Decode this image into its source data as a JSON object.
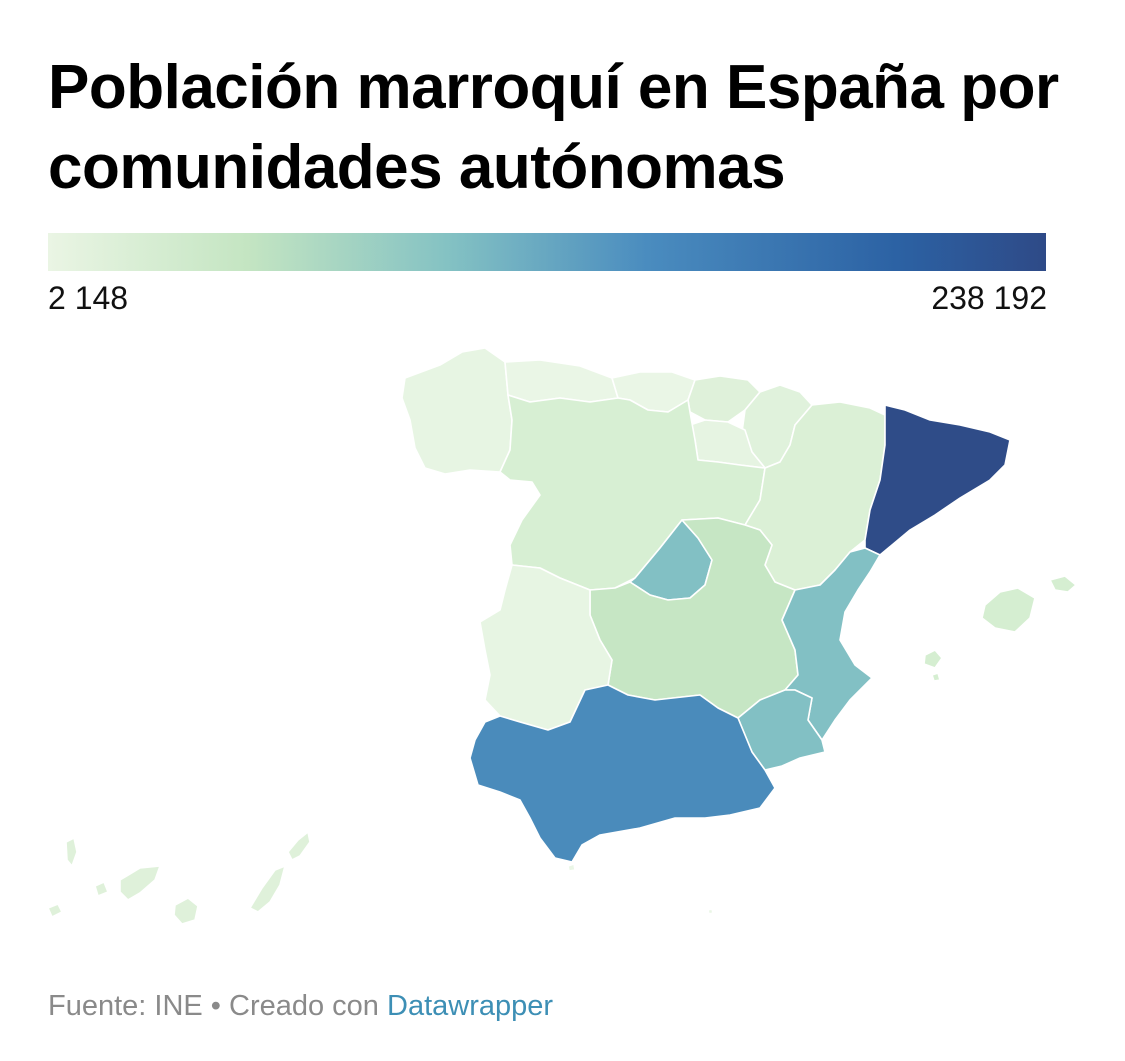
{
  "title": "Población marroquí en España por comunidades autónomas",
  "legend": {
    "min_label": "2 148",
    "max_label": "238 192",
    "min_value": 2148,
    "max_value": 238192,
    "gradient_colors": [
      "#eaf5e4",
      "#c4e5c2",
      "#84c2c3",
      "#4a8cbf",
      "#2c62a4",
      "#2e4a87"
    ]
  },
  "regions": [
    {
      "id": "cataluna",
      "color": "#2f4c88"
    },
    {
      "id": "andalucia",
      "color": "#4a8bbb"
    },
    {
      "id": "madrid",
      "color": "#82c0c4"
    },
    {
      "id": "valencia",
      "color": "#82c0c4"
    },
    {
      "id": "murcia",
      "color": "#82c0c4"
    },
    {
      "id": "castilla-la-mancha",
      "color": "#c6e6c4"
    },
    {
      "id": "castilla-y-leon",
      "color": "#d7efd3"
    },
    {
      "id": "aragon",
      "color": "#dbf0d6"
    },
    {
      "id": "galicia",
      "color": "#e7f5e3"
    },
    {
      "id": "asturias",
      "color": "#eaf6e6"
    },
    {
      "id": "cantabria",
      "color": "#eaf6e6"
    },
    {
      "id": "pais-vasco",
      "color": "#dff1da"
    },
    {
      "id": "navarra",
      "color": "#e0f2dc"
    },
    {
      "id": "la-rioja",
      "color": "#e6f4e2"
    },
    {
      "id": "extremadura",
      "color": "#e7f5e3"
    },
    {
      "id": "baleares",
      "color": "#d5eed1"
    },
    {
      "id": "canarias",
      "color": "#dff1da"
    },
    {
      "id": "ceuta",
      "color": "#eaf6e6"
    },
    {
      "id": "melilla",
      "color": "#eaf6e6"
    }
  ],
  "footer": {
    "source_text": "Fuente: INE • Creado con ",
    "link_text": "Datawrapper"
  }
}
